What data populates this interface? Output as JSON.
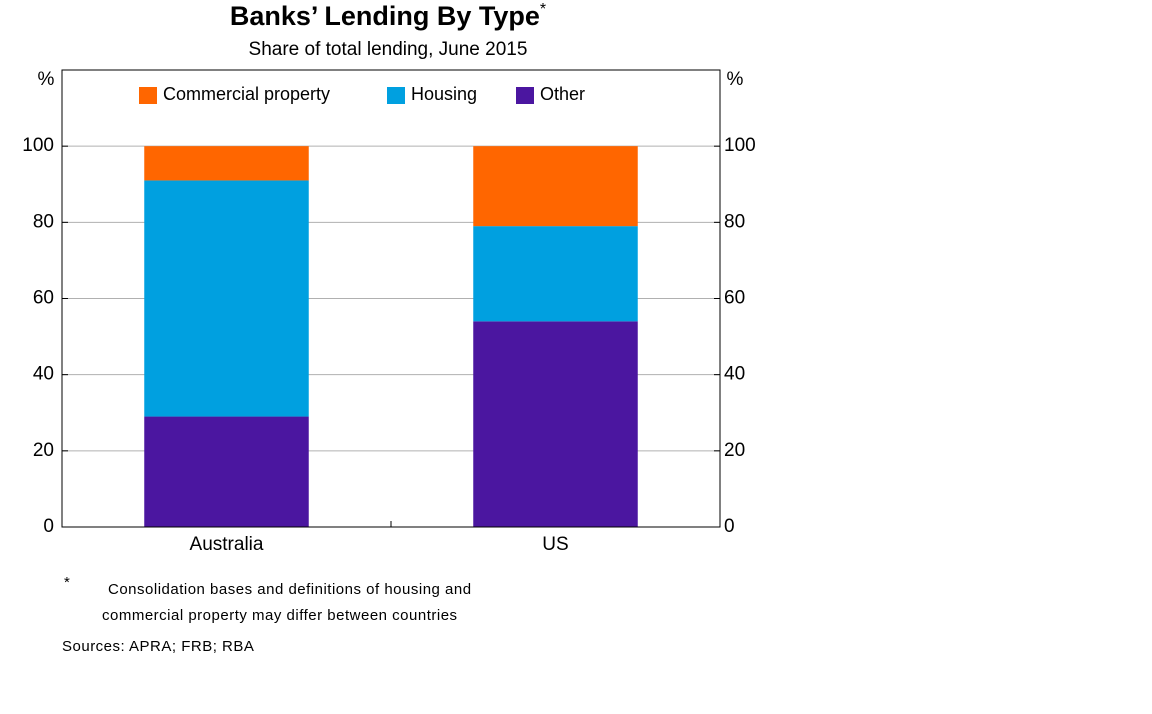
{
  "chart_data": {
    "type": "stacked_bar",
    "title": "Banks’ Lending By Type",
    "title_note": "*",
    "subtitle": "Share of total lending, June 2015",
    "y_unit": "%",
    "y2_unit": "%",
    "categories": [
      "Australia",
      "US"
    ],
    "series": [
      {
        "name": "Commercial property",
        "color": "#ff6600",
        "values": [
          9,
          21
        ]
      },
      {
        "name": "Housing",
        "color": "#00a0e0",
        "values": [
          62,
          25
        ]
      },
      {
        "name": "Other",
        "color": "#4b16a0",
        "values": [
          29,
          54
        ]
      }
    ],
    "ylim": [
      0,
      120
    ],
    "yticks": [
      0,
      20,
      40,
      60,
      80,
      100
    ],
    "y2lim": [
      0,
      120
    ],
    "y2ticks": [
      0,
      20,
      40,
      60,
      80,
      100
    ],
    "grid": true,
    "legend": "top",
    "footnote_marker": "*",
    "footnote": [
      "Consolidation bases and definitions of housing and",
      "commercial property may differ between countries"
    ],
    "sources": "Sources:  APRA; FRB; RBA"
  }
}
